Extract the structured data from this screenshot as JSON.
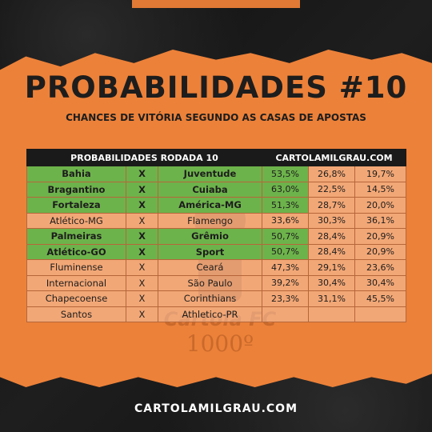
{
  "title": "PROBABILIDADES #10",
  "subtitle": "CHANCES DE VITÓRIA SEGUNDO AS CASAS DE APOSTAS",
  "table": {
    "header_left": "PROBABILIDADES RODADA 10",
    "header_right": "CARTOLAMILGRAU.COM",
    "rows": [
      {
        "home": "Bahia",
        "sep": "X",
        "away": "Juventude",
        "p1": "53,5%",
        "px": "26,8%",
        "p2": "19,7%",
        "highlight": true
      },
      {
        "home": "Bragantino",
        "sep": "X",
        "away": "Cuiaba",
        "p1": "63,0%",
        "px": "22,5%",
        "p2": "14,5%",
        "highlight": true
      },
      {
        "home": "Fortaleza",
        "sep": "X",
        "away": "América-MG",
        "p1": "51,3%",
        "px": "28,7%",
        "p2": "20,0%",
        "highlight": true
      },
      {
        "home": "Atlético-MG",
        "sep": "X",
        "away": "Flamengo",
        "p1": "33,6%",
        "px": "30,3%",
        "p2": "36,1%",
        "highlight": false
      },
      {
        "home": "Palmeiras",
        "sep": "X",
        "away": "Grêmio",
        "p1": "50,7%",
        "px": "28,4%",
        "p2": "20,9%",
        "highlight": true
      },
      {
        "home": "Atlético-GO",
        "sep": "X",
        "away": "Sport",
        "p1": "50,7%",
        "px": "28,4%",
        "p2": "20,9%",
        "highlight": true
      },
      {
        "home": "Fluminense",
        "sep": "X",
        "away": "Ceará",
        "p1": "47,3%",
        "px": "29,1%",
        "p2": "23,6%",
        "highlight": false
      },
      {
        "home": "Internacional",
        "sep": "X",
        "away": "São Paulo",
        "p1": "39,2%",
        "px": "30,4%",
        "p2": "30,4%",
        "highlight": false
      },
      {
        "home": "Chapecoense",
        "sep": "X",
        "away": "Corinthians",
        "p1": "23,3%",
        "px": "31,1%",
        "p2": "45,5%",
        "highlight": false
      },
      {
        "home": "Santos",
        "sep": "X",
        "away": "Athletico-PR",
        "p1": "",
        "px": "",
        "p2": "",
        "highlight": false
      }
    ]
  },
  "watermark": {
    "brand": "Cartola FC",
    "number": "1000º"
  },
  "footer": "CARTOLAMILGRAU.COM",
  "colors": {
    "orange": "#ec8139",
    "green": "#6db34b",
    "dark": "#1a1a1a"
  }
}
